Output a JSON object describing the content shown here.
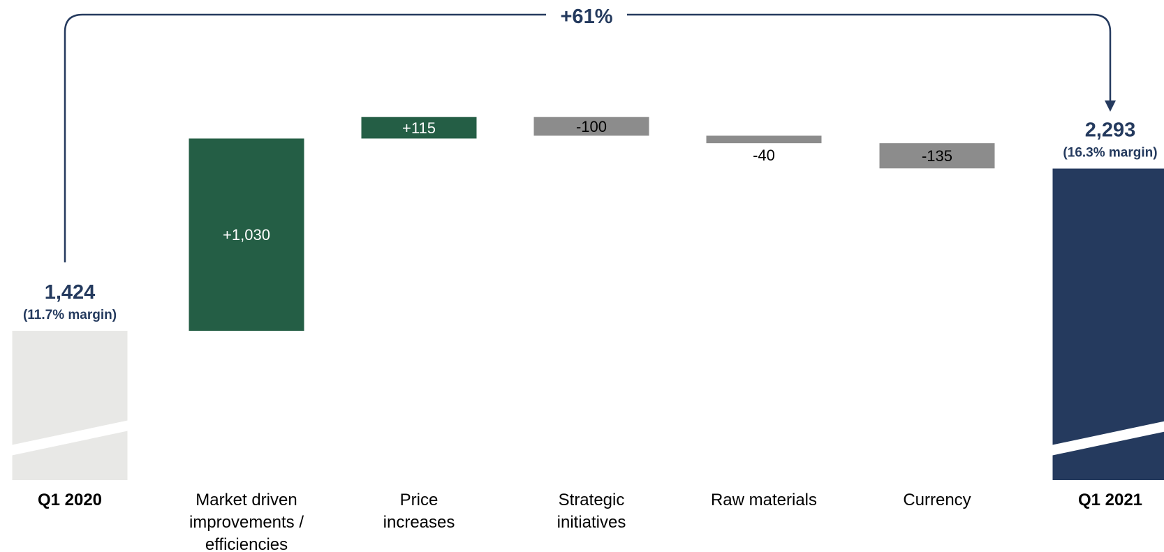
{
  "chart_data": {
    "type": "bar",
    "subtype": "waterfall",
    "categories": [
      "Q1 2020",
      "Market driven improvements / efficiencies",
      "Price increases",
      "Strategic initiatives",
      "Raw materials",
      "Currency",
      "Q1 2021"
    ],
    "category_lines": [
      [
        "Q1 2020"
      ],
      [
        "Market driven",
        "improvements /",
        "efficiencies"
      ],
      [
        "Price",
        "increases"
      ],
      [
        "Strategic",
        "initiatives"
      ],
      [
        "Raw materials"
      ],
      [
        "Currency"
      ],
      [
        "Q1 2021"
      ]
    ],
    "values": [
      1424,
      1030,
      115,
      -100,
      -40,
      -135,
      2293
    ],
    "value_labels": [
      "1,424",
      "+1,030",
      "+115",
      "-100",
      "-40",
      "-135",
      "2,293"
    ],
    "kinds": [
      "total",
      "delta",
      "delta",
      "delta",
      "delta",
      "delta",
      "total"
    ],
    "totals_notes": [
      "(11.7% margin)",
      "(16.3% margin)"
    ],
    "growth_label": "+61%",
    "axis_break": true,
    "colors": {
      "start_total": "#e8e8e6",
      "end_total": "#253a5e",
      "increase": "#245e45",
      "decrease": "#8c8c8c",
      "bracket": "#253a5e"
    }
  }
}
